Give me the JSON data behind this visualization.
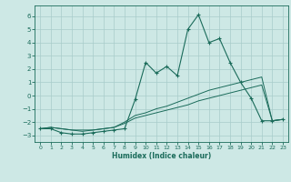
{
  "title": "",
  "xlabel": "Humidex (Indice chaleur)",
  "xlim": [
    -0.5,
    23.5
  ],
  "ylim": [
    -3.5,
    6.8
  ],
  "xticks": [
    0,
    1,
    2,
    3,
    4,
    5,
    6,
    7,
    8,
    9,
    10,
    11,
    12,
    13,
    14,
    15,
    16,
    17,
    18,
    19,
    20,
    21,
    22,
    23
  ],
  "yticks": [
    -3,
    -2,
    -1,
    0,
    1,
    2,
    3,
    4,
    5,
    6
  ],
  "background_color": "#cde8e5",
  "grid_color": "#a8ccca",
  "line_color": "#1a6b5a",
  "main_y": [
    -2.5,
    -2.5,
    -2.8,
    -2.9,
    -2.9,
    -2.8,
    -2.7,
    -2.6,
    -2.5,
    -0.3,
    2.5,
    1.7,
    2.2,
    1.5,
    5.0,
    6.1,
    4.0,
    4.3,
    2.5,
    1.0,
    -0.2,
    -1.9,
    -1.9,
    -1.8
  ],
  "line2_y": [
    -2.5,
    -2.4,
    -2.5,
    -2.6,
    -2.6,
    -2.6,
    -2.5,
    -2.4,
    -2.0,
    -1.5,
    -1.3,
    -1.0,
    -0.8,
    -0.5,
    -0.2,
    0.1,
    0.4,
    0.6,
    0.8,
    1.0,
    1.2,
    1.4,
    -1.9,
    -1.8
  ],
  "line3_y": [
    -2.5,
    -2.4,
    -2.5,
    -2.6,
    -2.7,
    -2.6,
    -2.5,
    -2.4,
    -2.1,
    -1.7,
    -1.5,
    -1.3,
    -1.1,
    -0.9,
    -0.7,
    -0.4,
    -0.2,
    0.0,
    0.2,
    0.4,
    0.6,
    0.8,
    -1.9,
    -1.8
  ]
}
